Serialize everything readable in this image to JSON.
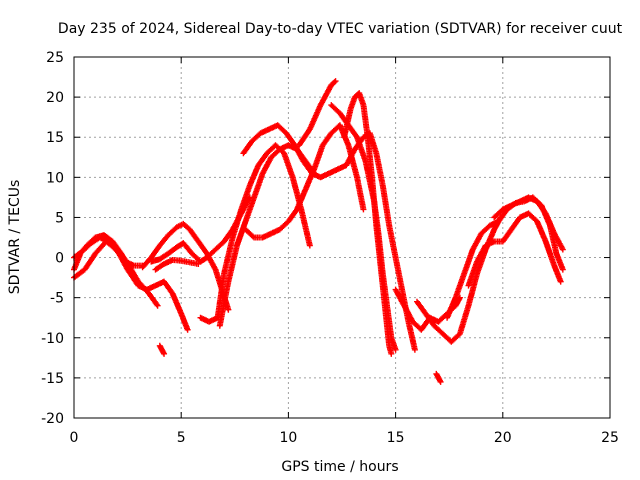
{
  "chart_data": {
    "type": "scatter",
    "title": "Day 235 of 2024, Sidereal Day-to-day VTEC variation (SDTVAR) for receiver cuut",
    "xlabel": "GPS time / hours",
    "ylabel": "SDTVAR / TECUs",
    "xlim": [
      0,
      25
    ],
    "ylim": [
      -20,
      25
    ],
    "xticks": [
      0,
      5,
      10,
      15,
      20,
      25
    ],
    "yticks": [
      -20,
      -15,
      -10,
      -5,
      0,
      5,
      10,
      15,
      20,
      25
    ],
    "grid": true,
    "marker": "plus",
    "color": "#ff0000",
    "series": [
      {
        "name": "track-1",
        "points": [
          [
            0.0,
            -1.5
          ],
          [
            0.3,
            0.5
          ],
          [
            0.6,
            1.5
          ],
          [
            1.0,
            2.5
          ],
          [
            1.4,
            2.8
          ],
          [
            1.8,
            2.0
          ],
          [
            2.2,
            0.5
          ],
          [
            2.6,
            -1.2
          ],
          [
            3.0,
            -3.0
          ],
          [
            3.5,
            -4.5
          ],
          [
            3.9,
            -6.0
          ]
        ]
      },
      {
        "name": "track-2",
        "points": [
          [
            0.0,
            -2.5
          ],
          [
            0.5,
            -1.5
          ],
          [
            1.0,
            0.5
          ],
          [
            1.5,
            2.0
          ],
          [
            2.0,
            1.0
          ],
          [
            2.5,
            -1.5
          ],
          [
            3.0,
            -3.5
          ],
          [
            3.4,
            -4.0
          ],
          [
            3.8,
            -3.5
          ],
          [
            4.2,
            -3.0
          ],
          [
            4.6,
            -4.5
          ],
          [
            5.0,
            -7.0
          ],
          [
            5.3,
            -9.0
          ]
        ]
      },
      {
        "name": "track-3",
        "points": [
          [
            0.0,
            0.0
          ],
          [
            0.4,
            0.8
          ],
          [
            0.8,
            1.8
          ],
          [
            1.2,
            2.5
          ],
          [
            1.6,
            2.0
          ],
          [
            2.0,
            0.8
          ],
          [
            2.4,
            -0.5
          ],
          [
            2.8,
            -1.0
          ],
          [
            3.2,
            -1.0
          ]
        ]
      },
      {
        "name": "track-4",
        "points": [
          [
            3.2,
            -1.2
          ],
          [
            3.6,
            0.0
          ],
          [
            4.0,
            1.5
          ],
          [
            4.4,
            2.8
          ],
          [
            4.8,
            3.8
          ],
          [
            5.1,
            4.2
          ],
          [
            5.4,
            3.5
          ],
          [
            5.8,
            2.0
          ],
          [
            6.2,
            0.5
          ],
          [
            6.6,
            -1.5
          ],
          [
            6.9,
            -4.0
          ],
          [
            7.2,
            -6.5
          ]
        ]
      },
      {
        "name": "track-5",
        "points": [
          [
            3.6,
            -0.5
          ],
          [
            4.0,
            -0.2
          ],
          [
            4.4,
            0.5
          ],
          [
            4.8,
            1.3
          ],
          [
            5.1,
            1.8
          ],
          [
            5.5,
            0.5
          ],
          [
            5.9,
            -0.5
          ],
          [
            6.2,
            0.0
          ],
          [
            6.6,
            1.0
          ],
          [
            7.0,
            2.0
          ],
          [
            7.4,
            3.5
          ],
          [
            7.8,
            5.5
          ],
          [
            8.2,
            7.5
          ]
        ]
      },
      {
        "name": "track-6",
        "points": [
          [
            3.8,
            -1.5
          ],
          [
            4.2,
            -0.8
          ],
          [
            4.6,
            -0.3
          ],
          [
            5.0,
            -0.4
          ],
          [
            5.4,
            -0.6
          ],
          [
            5.8,
            -0.8
          ]
        ]
      },
      {
        "name": "track-7",
        "points": [
          [
            5.9,
            -7.5
          ],
          [
            6.3,
            -8.0
          ],
          [
            6.7,
            -7.5
          ],
          [
            7.0,
            -2.0
          ],
          [
            7.4,
            2.5
          ],
          [
            7.8,
            6.0
          ],
          [
            8.2,
            9.0
          ],
          [
            8.6,
            11.5
          ],
          [
            9.0,
            13.0
          ],
          [
            9.4,
            14.0
          ],
          [
            9.8,
            13.0
          ],
          [
            10.2,
            10.0
          ],
          [
            10.6,
            6.0
          ],
          [
            11.0,
            1.5
          ]
        ]
      },
      {
        "name": "track-8",
        "points": [
          [
            6.8,
            -8.5
          ],
          [
            7.2,
            -3.0
          ],
          [
            7.6,
            1.5
          ],
          [
            8.0,
            4.5
          ],
          [
            8.4,
            7.5
          ],
          [
            8.8,
            10.5
          ],
          [
            9.2,
            12.5
          ],
          [
            9.6,
            13.5
          ],
          [
            10.0,
            14.0
          ],
          [
            10.4,
            13.5
          ],
          [
            10.8,
            12.0
          ],
          [
            11.2,
            10.5
          ]
        ]
      },
      {
        "name": "track-9",
        "points": [
          [
            7.9,
            13.0
          ],
          [
            8.3,
            14.5
          ],
          [
            8.7,
            15.5
          ],
          [
            9.1,
            16.0
          ],
          [
            9.5,
            16.5
          ],
          [
            9.9,
            15.5
          ],
          [
            10.3,
            14.0
          ],
          [
            10.7,
            12.0
          ],
          [
            11.1,
            10.5
          ],
          [
            11.5,
            10.0
          ],
          [
            11.9,
            10.5
          ],
          [
            12.3,
            11.0
          ],
          [
            12.7,
            11.5
          ],
          [
            13.1,
            13.5
          ],
          [
            13.5,
            15.0
          ],
          [
            13.8,
            15.5
          ],
          [
            14.1,
            13.0
          ],
          [
            14.4,
            9.0
          ],
          [
            14.7,
            4.0
          ],
          [
            15.0,
            0.0
          ],
          [
            15.3,
            -4.0
          ],
          [
            15.6,
            -8.0
          ],
          [
            15.9,
            -11.5
          ]
        ]
      },
      {
        "name": "track-10",
        "points": [
          [
            8.0,
            3.5
          ],
          [
            8.4,
            2.5
          ],
          [
            8.8,
            2.5
          ],
          [
            9.2,
            3.0
          ],
          [
            9.6,
            3.5
          ],
          [
            10.0,
            4.5
          ],
          [
            10.4,
            6.0
          ],
          [
            10.8,
            8.5
          ],
          [
            11.2,
            11.0
          ],
          [
            11.6,
            14.0
          ],
          [
            12.0,
            15.5
          ],
          [
            12.4,
            16.5
          ],
          [
            12.8,
            14.0
          ],
          [
            13.2,
            10.0
          ],
          [
            13.5,
            6.0
          ]
        ]
      },
      {
        "name": "track-11",
        "points": [
          [
            10.5,
            14.0
          ],
          [
            11.0,
            16.0
          ],
          [
            11.5,
            19.0
          ],
          [
            12.0,
            21.5
          ],
          [
            12.2,
            22.0
          ]
        ]
      },
      {
        "name": "track-12",
        "points": [
          [
            12.0,
            19.0
          ],
          [
            12.4,
            18.0
          ],
          [
            12.8,
            16.5
          ],
          [
            13.2,
            15.0
          ],
          [
            13.6,
            12.0
          ],
          [
            14.0,
            7.0
          ],
          [
            14.2,
            3.0
          ],
          [
            14.4,
            -2.0
          ],
          [
            14.6,
            -6.0
          ],
          [
            14.8,
            -10.0
          ],
          [
            15.0,
            -11.5
          ]
        ]
      },
      {
        "name": "track-13",
        "points": [
          [
            12.6,
            15.0
          ],
          [
            12.9,
            18.5
          ],
          [
            13.1,
            20.0
          ],
          [
            13.3,
            20.5
          ],
          [
            13.5,
            19.0
          ],
          [
            13.7,
            15.0
          ],
          [
            13.9,
            10.0
          ],
          [
            14.1,
            4.0
          ],
          [
            14.3,
            -1.0
          ],
          [
            14.5,
            -6.0
          ],
          [
            14.7,
            -11.0
          ],
          [
            14.8,
            -12.0
          ]
        ]
      },
      {
        "name": "track-14",
        "points": [
          [
            15.0,
            -4.0
          ],
          [
            15.4,
            -6.0
          ],
          [
            15.8,
            -8.0
          ],
          [
            16.2,
            -9.0
          ],
          [
            16.6,
            -7.5
          ],
          [
            17.0,
            -8.0
          ],
          [
            17.4,
            -7.0
          ],
          [
            17.8,
            -6.0
          ],
          [
            18.0,
            -5.0
          ]
        ]
      },
      {
        "name": "track-15",
        "points": [
          [
            16.0,
            -5.5
          ],
          [
            16.4,
            -7.0
          ],
          [
            16.8,
            -8.5
          ],
          [
            17.2,
            -9.5
          ],
          [
            17.6,
            -10.5
          ],
          [
            18.0,
            -9.5
          ],
          [
            18.4,
            -6.0
          ],
          [
            18.8,
            -2.0
          ],
          [
            19.2,
            1.0
          ],
          [
            19.6,
            3.5
          ],
          [
            19.9,
            5.0
          ]
        ]
      },
      {
        "name": "track-16",
        "points": [
          [
            17.4,
            -7.5
          ],
          [
            17.8,
            -5.0
          ],
          [
            18.2,
            -2.0
          ],
          [
            18.6,
            1.0
          ],
          [
            19.0,
            3.0
          ],
          [
            19.4,
            4.0
          ],
          [
            19.8,
            4.5
          ],
          [
            20.2,
            6.0
          ],
          [
            20.6,
            6.8
          ],
          [
            21.0,
            7.0
          ],
          [
            21.4,
            7.5
          ],
          [
            21.8,
            6.5
          ],
          [
            22.2,
            4.0
          ],
          [
            22.5,
            0.5
          ],
          [
            22.8,
            -1.5
          ]
        ]
      },
      {
        "name": "track-17",
        "points": [
          [
            18.4,
            -3.5
          ],
          [
            18.8,
            -0.5
          ],
          [
            19.2,
            1.5
          ],
          [
            19.6,
            2.0
          ],
          [
            20.0,
            2.0
          ],
          [
            20.4,
            3.5
          ],
          [
            20.8,
            5.0
          ],
          [
            21.2,
            5.5
          ],
          [
            21.6,
            4.5
          ],
          [
            22.0,
            2.0
          ],
          [
            22.4,
            -1.0
          ],
          [
            22.7,
            -3.0
          ]
        ]
      },
      {
        "name": "track-18",
        "points": [
          [
            19.6,
            5.0
          ],
          [
            20.0,
            6.0
          ],
          [
            20.4,
            6.5
          ],
          [
            20.8,
            7.0
          ],
          [
            21.2,
            7.5
          ],
          [
            21.6,
            7.0
          ],
          [
            22.0,
            5.5
          ],
          [
            22.4,
            3.0
          ],
          [
            22.8,
            1.0
          ]
        ]
      },
      {
        "name": "track-19",
        "points": [
          [
            4.0,
            -11.0
          ],
          [
            4.1,
            -11.5
          ],
          [
            4.2,
            -12.0
          ]
        ]
      },
      {
        "name": "track-20",
        "points": [
          [
            16.9,
            -14.5
          ],
          [
            17.0,
            -15.0
          ],
          [
            17.1,
            -15.5
          ]
        ]
      }
    ]
  }
}
